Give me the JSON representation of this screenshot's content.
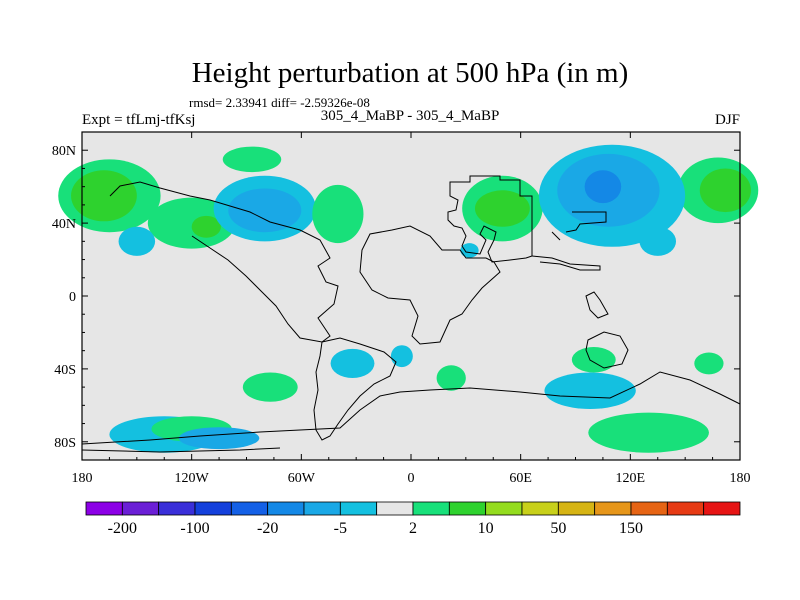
{
  "chart_data": {
    "type": "heatmap",
    "title": "Height perturbation at 500 hPa (in m)",
    "stats_text": "rmsd= 2.33941 diff= -2.59326e-08",
    "left_label": "Expt = tfLmj-tfKsj",
    "center_label": "305_4_MaBP - 305_4_MaBP",
    "right_label": "DJF",
    "xlabel": "",
    "ylabel": "",
    "xlim": [
      -180,
      180
    ],
    "ylim": [
      -90,
      90
    ],
    "x_ticks": [
      {
        "value": -180,
        "label": "180"
      },
      {
        "value": -120,
        "label": "120W"
      },
      {
        "value": -60,
        "label": "60W"
      },
      {
        "value": 0,
        "label": "0"
      },
      {
        "value": 60,
        "label": "60E"
      },
      {
        "value": 120,
        "label": "120E"
      },
      {
        "value": 180,
        "label": "180"
      }
    ],
    "y_ticks": [
      {
        "value": 80,
        "label": "80N"
      },
      {
        "value": 40,
        "label": "40N"
      },
      {
        "value": 0,
        "label": "0"
      },
      {
        "value": -40,
        "label": "40S"
      },
      {
        "value": -80,
        "label": "80S"
      }
    ],
    "colorbar": {
      "colors": [
        "#8c00e6",
        "#6b1fd6",
        "#3a2fd9",
        "#1440dc",
        "#1460e6",
        "#1488e6",
        "#1aa8e6",
        "#14c0e0",
        "#e6e6e6",
        "#18e07a",
        "#2ed22e",
        "#94dc1e",
        "#c8d01a",
        "#d6b414",
        "#e6961a",
        "#e66414",
        "#e63a14",
        "#e61414"
      ],
      "labels": [
        {
          "boundary": 1,
          "text": "-200"
        },
        {
          "boundary": 3,
          "text": "-100"
        },
        {
          "boundary": 5,
          "text": "-20"
        },
        {
          "boundary": 7,
          "text": "-5"
        },
        {
          "boundary": 9,
          "text": "2"
        },
        {
          "boundary": 11,
          "text": "10"
        },
        {
          "boundary": 13,
          "text": "50"
        },
        {
          "boundary": 15,
          "text": "150"
        }
      ]
    },
    "blobs": [
      {
        "lon": -165,
        "lat": 55,
        "rlon": 28,
        "rlat": 20,
        "level": 9
      },
      {
        "lon": -168,
        "lat": 55,
        "rlon": 18,
        "rlat": 14,
        "level": 10
      },
      {
        "lon": 168,
        "lat": 58,
        "rlon": 22,
        "rlat": 18,
        "level": 9
      },
      {
        "lon": 172,
        "lat": 58,
        "rlon": 14,
        "rlat": 12,
        "level": 10
      },
      {
        "lon": -120,
        "lat": 40,
        "rlon": 24,
        "rlat": 14,
        "level": 9
      },
      {
        "lon": -112,
        "lat": 38,
        "rlon": 8,
        "rlat": 6,
        "level": 10
      },
      {
        "lon": -150,
        "lat": 30,
        "rlon": 10,
        "rlat": 8,
        "level": 7
      },
      {
        "lon": -80,
        "lat": 48,
        "rlon": 28,
        "rlat": 18,
        "level": 7
      },
      {
        "lon": -80,
        "lat": 47,
        "rlon": 20,
        "rlat": 12,
        "level": 6
      },
      {
        "lon": -87,
        "lat": 75,
        "rlon": 16,
        "rlat": 7,
        "level": 9
      },
      {
        "lon": -40,
        "lat": 45,
        "rlon": 14,
        "rlat": 16,
        "level": 9
      },
      {
        "lon": 50,
        "lat": 48,
        "rlon": 22,
        "rlat": 18,
        "level": 9
      },
      {
        "lon": 50,
        "lat": 48,
        "rlon": 15,
        "rlat": 10,
        "level": 10
      },
      {
        "lon": 110,
        "lat": 55,
        "rlon": 40,
        "rlat": 28,
        "level": 7
      },
      {
        "lon": 108,
        "lat": 58,
        "rlon": 28,
        "rlat": 20,
        "level": 6
      },
      {
        "lon": 105,
        "lat": 60,
        "rlon": 10,
        "rlat": 9,
        "level": 5
      },
      {
        "lon": 135,
        "lat": 30,
        "rlon": 10,
        "rlat": 8,
        "level": 7
      },
      {
        "lon": 32,
        "lat": 25,
        "rlon": 5,
        "rlat": 4,
        "level": 7
      },
      {
        "lon": -32,
        "lat": -37,
        "rlon": 12,
        "rlat": 8,
        "level": 7
      },
      {
        "lon": -5,
        "lat": -33,
        "rlon": 6,
        "rlat": 6,
        "level": 7
      },
      {
        "lon": -77,
        "lat": -50,
        "rlon": 15,
        "rlat": 8,
        "level": 9
      },
      {
        "lon": 22,
        "lat": -45,
        "rlon": 8,
        "rlat": 7,
        "level": 9
      },
      {
        "lon": 100,
        "lat": -35,
        "rlon": 12,
        "rlat": 7,
        "level": 9
      },
      {
        "lon": 98,
        "lat": -52,
        "rlon": 25,
        "rlat": 10,
        "level": 7
      },
      {
        "lon": 163,
        "lat": -37,
        "rlon": 8,
        "rlat": 6,
        "level": 9
      },
      {
        "lon": -135,
        "lat": -76,
        "rlon": 30,
        "rlat": 10,
        "level": 7
      },
      {
        "lon": -120,
        "lat": -73,
        "rlon": 22,
        "rlat": 7,
        "level": 9
      },
      {
        "lon": -105,
        "lat": -78,
        "rlon": 22,
        "rlat": 6,
        "level": 6
      },
      {
        "lon": 130,
        "lat": -75,
        "rlon": 33,
        "rlat": 11,
        "level": 9
      }
    ]
  }
}
